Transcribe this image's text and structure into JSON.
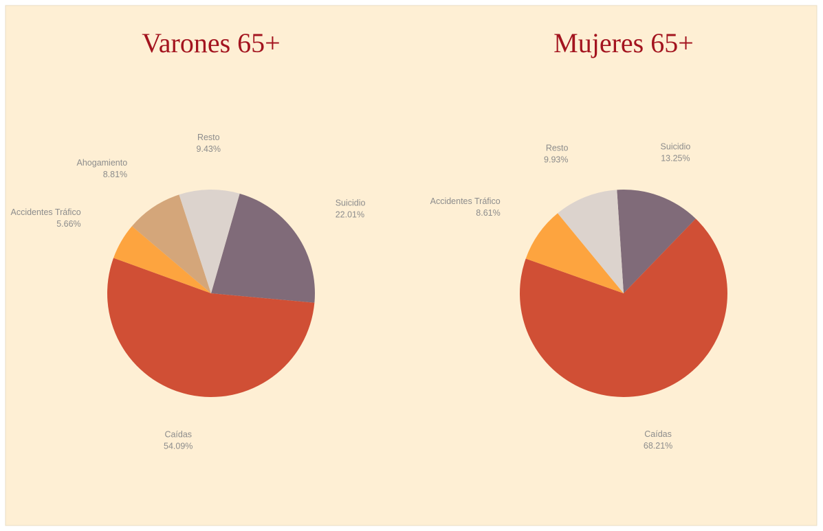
{
  "chart_data": [
    {
      "type": "pie",
      "title": "Varones 65+",
      "categories": [
        "Suicidio",
        "Caídas",
        "Accidentes Tráfico",
        "Ahogamiento",
        "Resto"
      ],
      "values": [
        22.01,
        54.09,
        5.66,
        8.81,
        9.43
      ],
      "value_labels": [
        "22.01%",
        "54.09%",
        "5.66%",
        "8.81%",
        "9.43%"
      ],
      "colors": [
        "#806b79",
        "#d04f35",
        "#fda43f",
        "#d4a67a",
        "#dcd3cd"
      ]
    },
    {
      "type": "pie",
      "title": "Mujeres 65+",
      "categories": [
        "Suicidio",
        "Caídas",
        "Accidentes Tráfico",
        "Resto"
      ],
      "values": [
        13.25,
        68.21,
        8.61,
        9.93
      ],
      "value_labels": [
        "13.25%",
        "68.21%",
        "8.61%",
        "9.93%"
      ],
      "colors": [
        "#806b79",
        "#d04f35",
        "#fda43f",
        "#dcd3cd"
      ]
    }
  ]
}
